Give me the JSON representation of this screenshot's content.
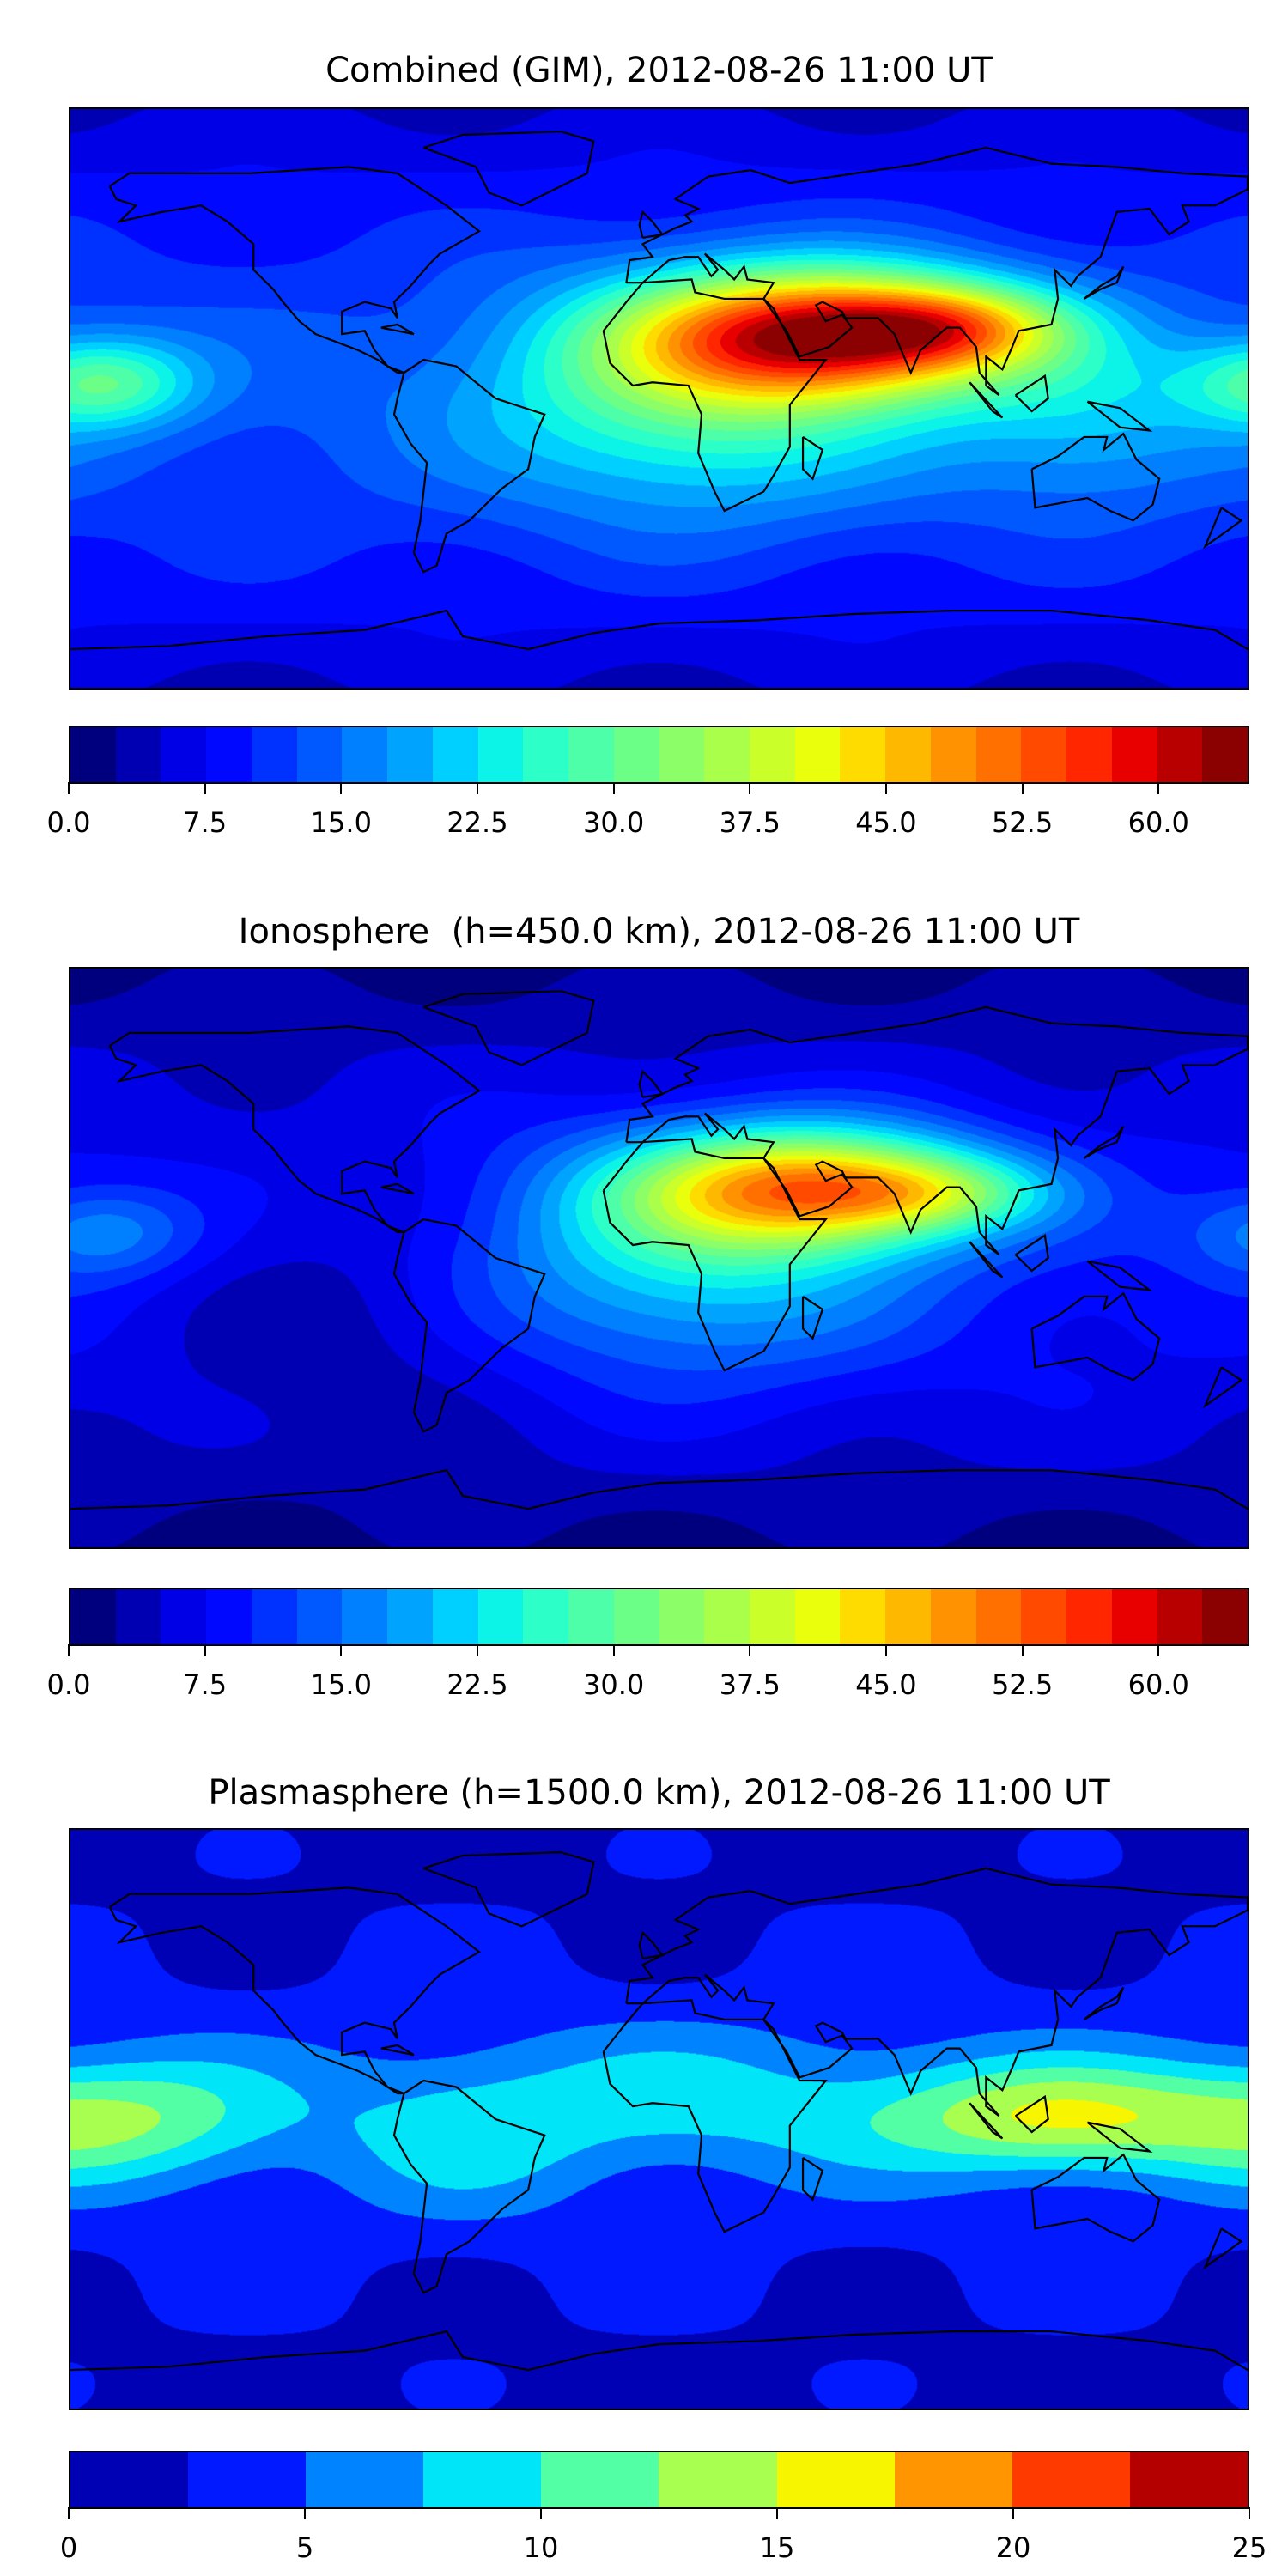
{
  "chart_data": [
    {
      "type": "heatmap",
      "title": "Combined (GIM), 2012-08-26 11:00 UT",
      "xlabel": "",
      "ylabel": "",
      "lon_range": [
        -180,
        180
      ],
      "lat_range": [
        -90,
        90
      ],
      "levels": {
        "min": 0,
        "max": 65,
        "step": 2.5
      },
      "colorbar_ticks": [
        "0.0",
        "7.5",
        "15.0",
        "22.5",
        "30.0",
        "37.5",
        "45.0",
        "52.5",
        "60.0"
      ],
      "colors": [
        "#00007f",
        "#0000b2",
        "#0000e6",
        "#0008ff",
        "#0032ff",
        "#0058ff",
        "#0080ff",
        "#00a4ff",
        "#00d0ff",
        "#0cf4e8",
        "#2cffc8",
        "#4cffa8",
        "#6cff88",
        "#8cff68",
        "#aaff4a",
        "#caff2a",
        "#eaff0c",
        "#ffdc00",
        "#ffb800",
        "#ff9200",
        "#ff7000",
        "#ff4a00",
        "#ff2600",
        "#e80000",
        "#b80000",
        "#8b0000"
      ],
      "field": {
        "base": 13,
        "polar_drop": 8,
        "components": [
          {
            "lon": 50,
            "lat": 20,
            "amp": 44,
            "sig_lon": 40,
            "sig_lat": 14
          },
          {
            "lon": 90,
            "lat": 22,
            "amp": 18,
            "sig_lon": 25,
            "sig_lat": 9
          },
          {
            "lon": 10,
            "lat": 0,
            "amp": 16,
            "sig_lon": 45,
            "sig_lat": 25
          },
          {
            "lon": -170,
            "lat": 5,
            "amp": 17,
            "sig_lon": 20,
            "sig_lat": 10
          },
          {
            "lon": 130,
            "lat": -5,
            "amp": 8,
            "sig_lon": 30,
            "sig_lat": 20
          }
        ]
      }
    },
    {
      "type": "heatmap",
      "title": "Ionosphere  (h=450.0 km), 2012-08-26 11:00 UT",
      "xlabel": "",
      "ylabel": "",
      "lon_range": [
        -180,
        180
      ],
      "lat_range": [
        -90,
        90
      ],
      "levels": {
        "min": 0,
        "max": 65,
        "step": 2.5
      },
      "colorbar_ticks": [
        "0.0",
        "7.5",
        "15.0",
        "22.5",
        "30.0",
        "37.5",
        "45.0",
        "52.5",
        "60.0"
      ],
      "colors": [
        "#00007f",
        "#0000b2",
        "#0000e6",
        "#0008ff",
        "#0032ff",
        "#0058ff",
        "#0080ff",
        "#00a4ff",
        "#00d0ff",
        "#0cf4e8",
        "#2cffc8",
        "#4cffa8",
        "#6cff88",
        "#8cff68",
        "#aaff4a",
        "#caff2a",
        "#eaff0c",
        "#ffdc00",
        "#ffb800",
        "#ff9200",
        "#ff7000",
        "#ff4a00",
        "#ff2600",
        "#e80000",
        "#b80000",
        "#8b0000"
      ],
      "field": {
        "base": 9,
        "polar_drop": 7,
        "components": [
          {
            "lon": 45,
            "lat": 22,
            "amp": 36,
            "sig_lon": 38,
            "sig_lat": 13
          },
          {
            "lon": 85,
            "lat": 20,
            "amp": 12,
            "sig_lon": 25,
            "sig_lat": 8
          },
          {
            "lon": 10,
            "lat": 0,
            "amp": 14,
            "sig_lon": 45,
            "sig_lat": 25
          },
          {
            "lon": -170,
            "lat": 8,
            "amp": 9,
            "sig_lon": 20,
            "sig_lat": 10
          },
          {
            "lon": -100,
            "lat": -15,
            "amp": -5,
            "sig_lon": 40,
            "sig_lat": 30
          }
        ]
      }
    },
    {
      "type": "heatmap",
      "title": "Plasmasphere (h=1500.0 km), 2012-08-26 11:00 UT",
      "xlabel": "",
      "ylabel": "",
      "lon_range": [
        -180,
        180
      ],
      "lat_range": [
        -90,
        90
      ],
      "levels": {
        "min": 0,
        "max": 25,
        "step": 2.5
      },
      "colorbar_ticks": [
        "0",
        "5",
        "10",
        "15",
        "20",
        "25"
      ],
      "colors": [
        "#0000b5",
        "#0019ff",
        "#0083ff",
        "#00e5f8",
        "#52ffa4",
        "#a8ff50",
        "#f8f500",
        "#ff9500",
        "#ff3a00",
        "#b50000"
      ],
      "field": {
        "base": 3.5,
        "polar_drop": 2,
        "components": [
          {
            "lon": -165,
            "lat": 0,
            "amp": 9,
            "sig_lon": 35,
            "sig_lat": 14
          },
          {
            "lon": 120,
            "lat": 0,
            "amp": 10,
            "sig_lon": 35,
            "sig_lat": 12
          },
          {
            "lon": 20,
            "lat": 5,
            "amp": 5,
            "sig_lon": 60,
            "sig_lat": 16
          },
          {
            "lon": -60,
            "lat": -5,
            "amp": 4,
            "sig_lon": 30,
            "sig_lat": 18
          }
        ]
      }
    }
  ]
}
